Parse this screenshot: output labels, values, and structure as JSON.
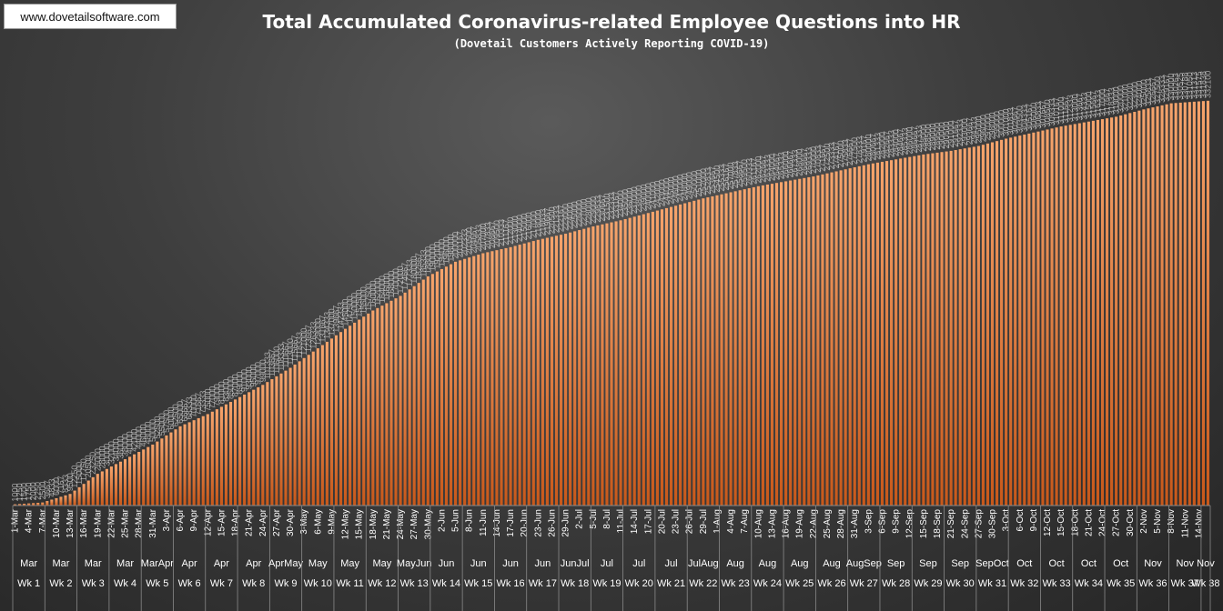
{
  "header": {
    "website": "www.dovetailsoftware.com",
    "title": "Total Accumulated Coronavirus-related Employee Questions into HR",
    "subtitle": "(Dovetail Customers Actively Reporting COVID-19)"
  },
  "colors": {
    "bar_top": "#f6a46c",
    "bar_bottom": "#c8581a",
    "label": "#ffffff",
    "axis_text": "#ffffff",
    "grid": "#8a8a8a"
  },
  "chart_data": {
    "type": "bar",
    "start_date": "2020-03-01",
    "end_date": "2020-11-16",
    "ylim": [
      0,
      370000
    ],
    "grid": false,
    "legend": "none",
    "x_tick_labels": [
      "1-Mar",
      "4-Mar",
      "7-Mar",
      "10-Mar",
      "13-Mar",
      "16-Mar",
      "19-Mar",
      "22-Mar",
      "25-Mar",
      "28-Mar",
      "31-Mar",
      "3-Apr",
      "6-Apr",
      "9-Apr",
      "12-Apr",
      "15-Apr",
      "18-Apr",
      "21-Apr",
      "24-Apr",
      "27-Apr",
      "30-Apr",
      "3-May",
      "6-May",
      "9-May",
      "12-May",
      "15-May",
      "18-May",
      "21-May",
      "24-May",
      "27-May",
      "30-May",
      "2-Jun",
      "5-Jun",
      "8-Jun",
      "11-Jun",
      "14-Jun",
      "17-Jun",
      "20-Jun",
      "23-Jun",
      "26-Jun",
      "29-Jun",
      "2-Jul",
      "5-Jul",
      "8-Jul",
      "11-Jul",
      "14-Jul",
      "17-Jul",
      "20-Jul",
      "23-Jul",
      "26-Jul",
      "29-Jul",
      "1-Aug",
      "4-Aug",
      "7-Aug",
      "10-Aug",
      "13-Aug",
      "16-Aug",
      "19-Aug",
      "22-Aug",
      "25-Aug",
      "28-Aug",
      "31-Aug",
      "3-Sep",
      "6-Sep",
      "9-Sep",
      "12-Sep",
      "15-Sep",
      "18-Sep",
      "21-Sep",
      "24-Sep",
      "27-Sep",
      "30-Sep",
      "3-Oct",
      "6-Oct",
      "9-Oct",
      "12-Oct",
      "15-Oct",
      "18-Oct",
      "21-Oct",
      "24-Oct",
      "27-Oct",
      "30-Oct",
      "2-Nov",
      "5-Nov",
      "8-Nov",
      "11-Nov",
      "14-Nov"
    ],
    "week_groups": [
      {
        "month": "Mar",
        "week": "Wk 1"
      },
      {
        "month": "Mar",
        "week": "Wk 2"
      },
      {
        "month": "Mar",
        "week": "Wk 3"
      },
      {
        "month": "Mar",
        "week": "Wk 4"
      },
      {
        "month": "MarApr",
        "week": "Wk 5"
      },
      {
        "month": "Apr",
        "week": "Wk 6"
      },
      {
        "month": "Apr",
        "week": "Wk 7"
      },
      {
        "month": "Apr",
        "week": "Wk 8"
      },
      {
        "month": "AprMay",
        "week": "Wk 9"
      },
      {
        "month": "May",
        "week": "Wk 10"
      },
      {
        "month": "May",
        "week": "Wk 11"
      },
      {
        "month": "May",
        "week": "Wk 12"
      },
      {
        "month": "MayJun",
        "week": "Wk 13"
      },
      {
        "month": "Jun",
        "week": "Wk 14"
      },
      {
        "month": "Jun",
        "week": "Wk 15"
      },
      {
        "month": "Jun",
        "week": "Wk 16"
      },
      {
        "month": "Jun",
        "week": "Wk 17"
      },
      {
        "month": "JunJul",
        "week": "Wk 18"
      },
      {
        "month": "Jul",
        "week": "Wk 19"
      },
      {
        "month": "Jul",
        "week": "Wk 20"
      },
      {
        "month": "Jul",
        "week": "Wk 21"
      },
      {
        "month": "JulAug",
        "week": "Wk 22"
      },
      {
        "month": "Aug",
        "week": "Wk 23"
      },
      {
        "month": "Aug",
        "week": "Wk 24"
      },
      {
        "month": "Aug",
        "week": "Wk 25"
      },
      {
        "month": "Aug",
        "week": "Wk 26"
      },
      {
        "month": "AugSep",
        "week": "Wk 27"
      },
      {
        "month": "Sep",
        "week": "Wk 28"
      },
      {
        "month": "Sep",
        "week": "Wk 29"
      },
      {
        "month": "Sep",
        "week": "Wk 30"
      },
      {
        "month": "SepOct",
        "week": "Wk 31"
      },
      {
        "month": "Oct",
        "week": "Wk 32"
      },
      {
        "month": "Oct",
        "week": "Wk 33"
      },
      {
        "month": "Oct",
        "week": "Wk 34"
      },
      {
        "month": "Oct",
        "week": "Wk 35"
      },
      {
        "month": "Nov",
        "week": "Wk 36"
      },
      {
        "month": "Nov",
        "week": "Wk 37"
      },
      {
        "month": "Nov",
        "week": "Wk 38"
      }
    ],
    "anchors": [
      {
        "date": "2020-03-01",
        "value": 1000
      },
      {
        "date": "2020-03-07",
        "value": 2500
      },
      {
        "date": "2020-03-13",
        "value": 9500
      },
      {
        "date": "2020-03-19",
        "value": 26000
      },
      {
        "date": "2020-03-25",
        "value": 38000
      },
      {
        "date": "2020-03-31",
        "value": 50000
      },
      {
        "date": "2020-04-06",
        "value": 65000
      },
      {
        "date": "2020-04-12",
        "value": 75000
      },
      {
        "date": "2020-04-18",
        "value": 87000
      },
      {
        "date": "2020-04-24",
        "value": 99000
      },
      {
        "date": "2020-04-30",
        "value": 113000
      },
      {
        "date": "2020-05-06",
        "value": 129000
      },
      {
        "date": "2020-05-12",
        "value": 145000
      },
      {
        "date": "2020-05-18",
        "value": 160000
      },
      {
        "date": "2020-05-24",
        "value": 172000
      },
      {
        "date": "2020-05-30",
        "value": 188000
      },
      {
        "date": "2020-06-05",
        "value": 200000
      },
      {
        "date": "2020-06-11",
        "value": 207000
      },
      {
        "date": "2020-06-17",
        "value": 212000
      },
      {
        "date": "2020-06-23",
        "value": 218000
      },
      {
        "date": "2020-06-29",
        "value": 223000
      },
      {
        "date": "2020-07-05",
        "value": 229000
      },
      {
        "date": "2020-07-11",
        "value": 234000
      },
      {
        "date": "2020-07-17",
        "value": 240000
      },
      {
        "date": "2020-07-23",
        "value": 246000
      },
      {
        "date": "2020-07-29",
        "value": 252000
      },
      {
        "date": "2020-08-04",
        "value": 257000
      },
      {
        "date": "2020-08-10",
        "value": 262000
      },
      {
        "date": "2020-08-16",
        "value": 266000
      },
      {
        "date": "2020-08-22",
        "value": 270000
      },
      {
        "date": "2020-08-28",
        "value": 275000
      },
      {
        "date": "2020-09-03",
        "value": 280000
      },
      {
        "date": "2020-09-09",
        "value": 284000
      },
      {
        "date": "2020-09-15",
        "value": 288000
      },
      {
        "date": "2020-09-21",
        "value": 291000
      },
      {
        "date": "2020-09-27",
        "value": 295000
      },
      {
        "date": "2020-10-03",
        "value": 301000
      },
      {
        "date": "2020-10-09",
        "value": 306000
      },
      {
        "date": "2020-10-15",
        "value": 311000
      },
      {
        "date": "2020-10-21",
        "value": 315000
      },
      {
        "date": "2020-10-27",
        "value": 319000
      },
      {
        "date": "2020-11-02",
        "value": 325000
      },
      {
        "date": "2020-11-08",
        "value": 330000
      },
      {
        "date": "2020-11-16",
        "value": 332100
      }
    ]
  }
}
